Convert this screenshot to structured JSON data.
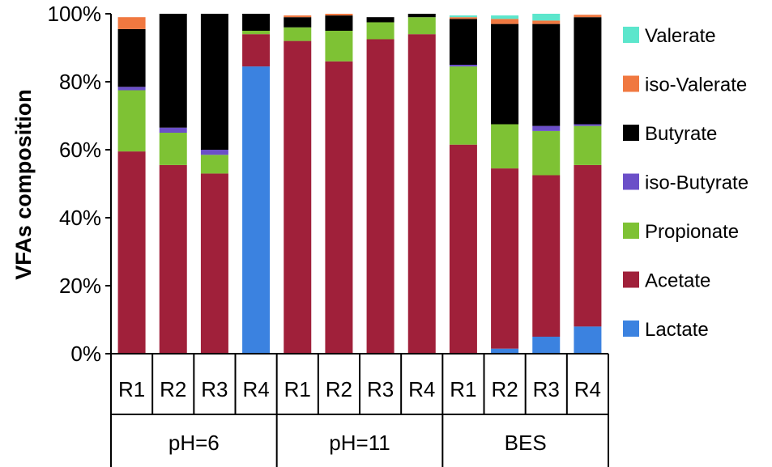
{
  "chart_data": {
    "type": "bar",
    "stacked": true,
    "title": "",
    "ylabel": "VFAs composition",
    "xlabel": "",
    "ylim": [
      0,
      100
    ],
    "yticks": [
      "0%",
      "20%",
      "40%",
      "60%",
      "80%",
      "100%"
    ],
    "grid": false,
    "legend_position": "right",
    "groups": [
      {
        "label": "pH=6",
        "categories": [
          "R1",
          "R2",
          "R3",
          "R4"
        ]
      },
      {
        "label": "pH=11",
        "categories": [
          "R1",
          "R2",
          "R3",
          "R4"
        ]
      },
      {
        "label": "BES",
        "categories": [
          "R1",
          "R2",
          "R3",
          "R4"
        ]
      }
    ],
    "categories": [
      "R1",
      "R2",
      "R3",
      "R4",
      "R1",
      "R2",
      "R3",
      "R4",
      "R1",
      "R2",
      "R3",
      "R4"
    ],
    "series": [
      {
        "name": "Lactate",
        "color": "#3b82e0",
        "values": [
          0,
          0,
          0,
          84.5,
          0,
          0,
          0,
          0,
          0,
          1.5,
          5,
          8
        ]
      },
      {
        "name": "Acetate",
        "color": "#a0203a",
        "values": [
          59.5,
          55.5,
          53,
          9.5,
          92,
          86,
          92.5,
          94,
          61.5,
          53,
          47.5,
          47.5
        ]
      },
      {
        "name": "Propionate",
        "color": "#7ec234",
        "values": [
          18,
          9.5,
          5.5,
          1,
          4,
          9,
          5,
          5,
          23,
          13,
          13,
          11.5
        ]
      },
      {
        "name": "iso-Butyrate",
        "color": "#6b4fc8",
        "values": [
          1,
          1.5,
          1.5,
          0,
          0,
          0,
          0,
          0,
          0.5,
          0,
          1.5,
          0.5
        ]
      },
      {
        "name": "Butyrate",
        "color": "#000000",
        "values": [
          17,
          33.5,
          40,
          5,
          3,
          4.5,
          1.5,
          1,
          13.5,
          29.5,
          30,
          31.5
        ]
      },
      {
        "name": "iso-Valerate",
        "color": "#f07840",
        "values": [
          3.5,
          0,
          0,
          0,
          0.5,
          0.5,
          0,
          0,
          0.5,
          1.5,
          1,
          0.7
        ]
      },
      {
        "name": "Valerate",
        "color": "#5ce6cc",
        "values": [
          0,
          0,
          0,
          0,
          0,
          0,
          0,
          0,
          0.5,
          1,
          2,
          0
        ]
      }
    ],
    "legend_order": [
      "Valerate",
      "iso-Valerate",
      "Butyrate",
      "iso-Butyrate",
      "Propionate",
      "Acetate",
      "Lactate"
    ]
  }
}
